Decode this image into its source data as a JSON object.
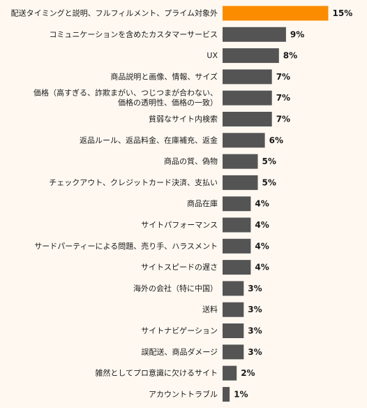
{
  "chart_data": {
    "type": "bar",
    "orientation": "horizontal",
    "title": "",
    "xlabel": "",
    "ylabel": "",
    "highlight_color": "#fb8c00",
    "bar_color": "#545454",
    "background_color": "#fef8f1",
    "value_suffix": "%",
    "grid": false,
    "legend": "none",
    "categories": [
      [
        "配送タイミングと説明、フルフィルメント、プライム対象外"
      ],
      [
        "コミュニケーションを含めたカスタマーサービス"
      ],
      [
        "UX"
      ],
      [
        "商品説明と画像、情報、サイズ"
      ],
      [
        "価格（高すぎる、詐欺まがい、つじつまが合わない、",
        "価格の透明性、価格の一致）"
      ],
      [
        "貧弱なサイト内検索"
      ],
      [
        "返品ルール、返品料金、在庫補充、返金"
      ],
      [
        "商品の質、偽物"
      ],
      [
        "チェックアウト、クレジットカード決済、支払い"
      ],
      [
        "商品在庫"
      ],
      [
        "サイトパフォーマンス"
      ],
      [
        "サードパーティーによる問題、売り手、ハラスメント"
      ],
      [
        "サイトスピードの遅さ"
      ],
      [
        "海外の会社（特に中国）"
      ],
      [
        "送料"
      ],
      [
        "サイトナビゲーション"
      ],
      [
        "誤配送、商品ダメージ"
      ],
      [
        "雑然としてプロ意識に欠けるサイト"
      ],
      [
        "アカウントトラブル"
      ]
    ],
    "values": [
      15,
      9,
      8,
      7,
      7,
      7,
      6,
      5,
      5,
      4,
      4,
      4,
      4,
      3,
      3,
      3,
      3,
      2,
      1
    ],
    "highlight_index": 0
  }
}
